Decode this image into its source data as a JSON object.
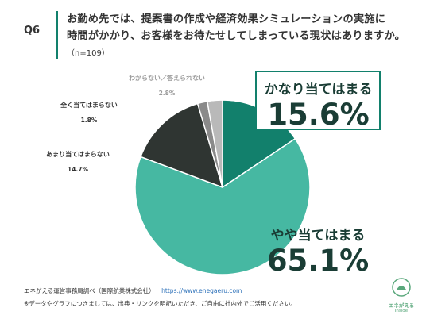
{
  "question": {
    "label": "Q6",
    "line1": "お勤め先では、提案書の作成や経済効果シミュレーションの実施に",
    "line2": "時間がかかり、お客様をお待たせしてしまっている現状はありますか。",
    "sample": "（n=109）"
  },
  "chart_data": {
    "type": "pie",
    "categories": [
      "かなり当てはまる",
      "やや当てはまる",
      "あまり当てはまらない",
      "全く当てはまらない",
      "わからない／答えられない"
    ],
    "values": [
      15.6,
      65.1,
      14.7,
      1.8,
      2.8
    ],
    "value_labels": [
      "15.6%",
      "65.1%",
      "14.7%",
      "1.8%",
      "2.8%"
    ],
    "colors": [
      "#12806c",
      "#46b8a2",
      "#2f3532",
      "#8a8a8a",
      "#b9b9b9"
    ]
  },
  "footer": {
    "source": "エネがえる運営事務局調べ（国際航業株式会社）",
    "url": "https://www.enegaeru.com",
    "note": "※データやグラフにつきましては、出典・リンクを明記いただき、ご自由に社内外でご活用ください。"
  },
  "logo": {
    "name": "エネがえる",
    "sub": "Inside"
  }
}
